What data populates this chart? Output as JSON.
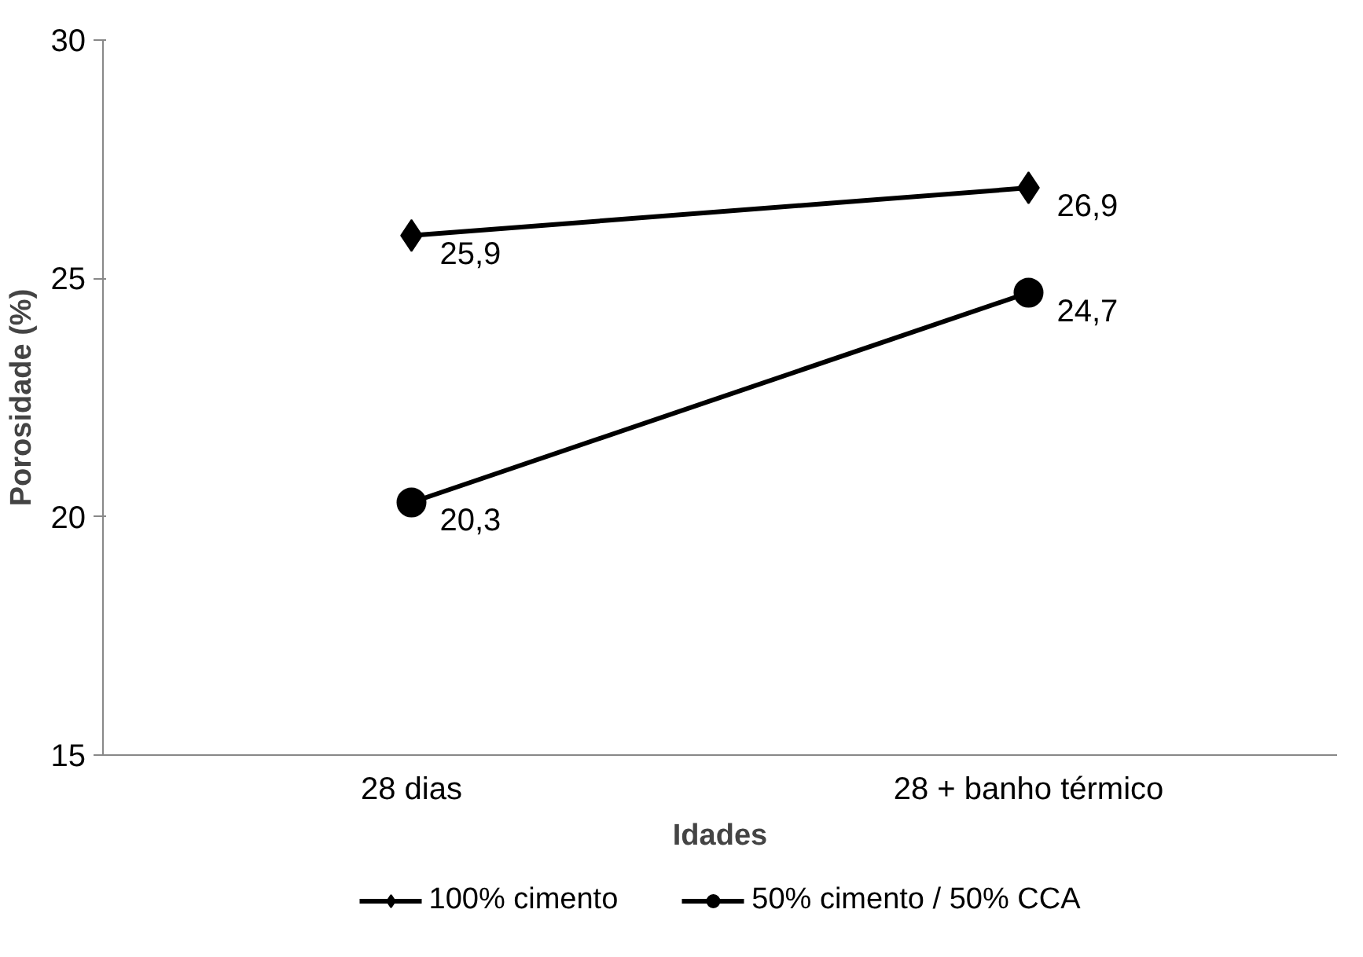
{
  "chart_data": {
    "type": "line",
    "xlabel": "Idades",
    "ylabel": "Porosidade (%)",
    "categories": [
      "28 dias",
      "28 + banho térmico"
    ],
    "series": [
      {
        "name": "100% cimento",
        "color": "#000000",
        "marker": "diamond",
        "values": [
          25.9,
          26.9
        ],
        "value_labels": [
          "25,9",
          "26,9"
        ]
      },
      {
        "name": "50% cimento / 50% CCA",
        "color": "#000000",
        "marker": "circle",
        "values": [
          20.3,
          24.7
        ],
        "value_labels": [
          "20,3",
          "24,7"
        ]
      }
    ],
    "ylim": [
      15,
      30
    ],
    "yticks": [
      15,
      20,
      25,
      30
    ],
    "grid": false,
    "legend": "bottom"
  }
}
